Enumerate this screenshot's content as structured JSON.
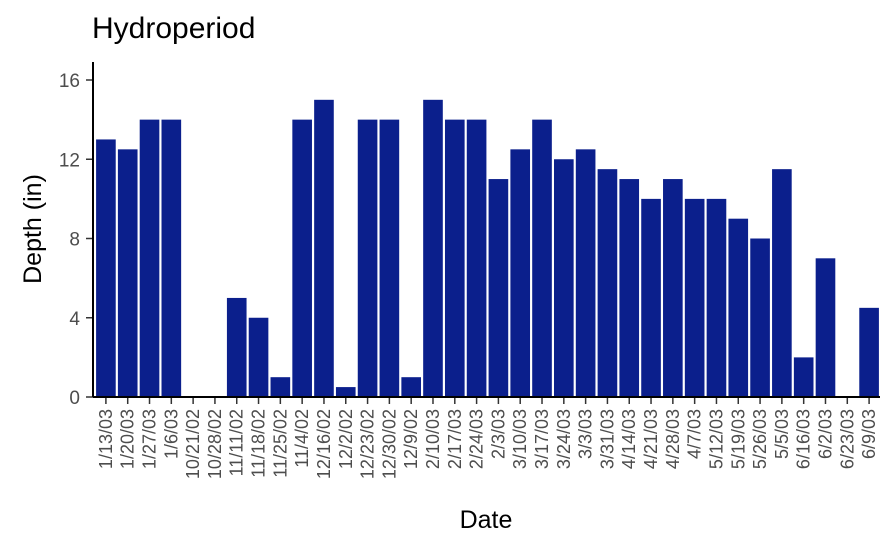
{
  "chart_data": {
    "type": "bar",
    "title": "Hydroperiod",
    "xlabel": "Date",
    "ylabel": "Depth (in)",
    "ylim": [
      0,
      17
    ],
    "yticks": [
      0,
      4,
      8,
      12,
      16
    ],
    "bar_color": "#0b1f8c",
    "grid": false,
    "legend": "none",
    "categories": [
      "1/13/03",
      "1/20/03",
      "1/27/03",
      "1/6/03",
      "10/21/02",
      "10/28/02",
      "11/11/02",
      "11/18/02",
      "11/25/02",
      "11/4/02",
      "12/16/02",
      "12/2/02",
      "12/23/02",
      "12/30/02",
      "12/9/02",
      "2/10/03",
      "2/17/03",
      "2/24/03",
      "2/3/03",
      "3/10/03",
      "3/17/03",
      "3/24/03",
      "3/3/03",
      "3/31/03",
      "4/14/03",
      "4/21/03",
      "4/28/03",
      "4/7/03",
      "5/12/03",
      "5/19/03",
      "5/26/03",
      "5/5/03",
      "6/16/03",
      "6/2/03",
      "6/23/03",
      "6/9/03"
    ],
    "values": [
      13,
      12.5,
      14,
      14,
      0,
      0,
      5,
      4,
      1,
      14,
      15,
      0.5,
      14,
      14,
      1,
      15,
      14,
      14,
      11,
      12.5,
      14,
      12,
      12.5,
      11.5,
      11,
      10,
      11,
      10,
      10,
      9,
      8,
      11.5,
      2,
      7,
      0,
      4.5
    ]
  }
}
